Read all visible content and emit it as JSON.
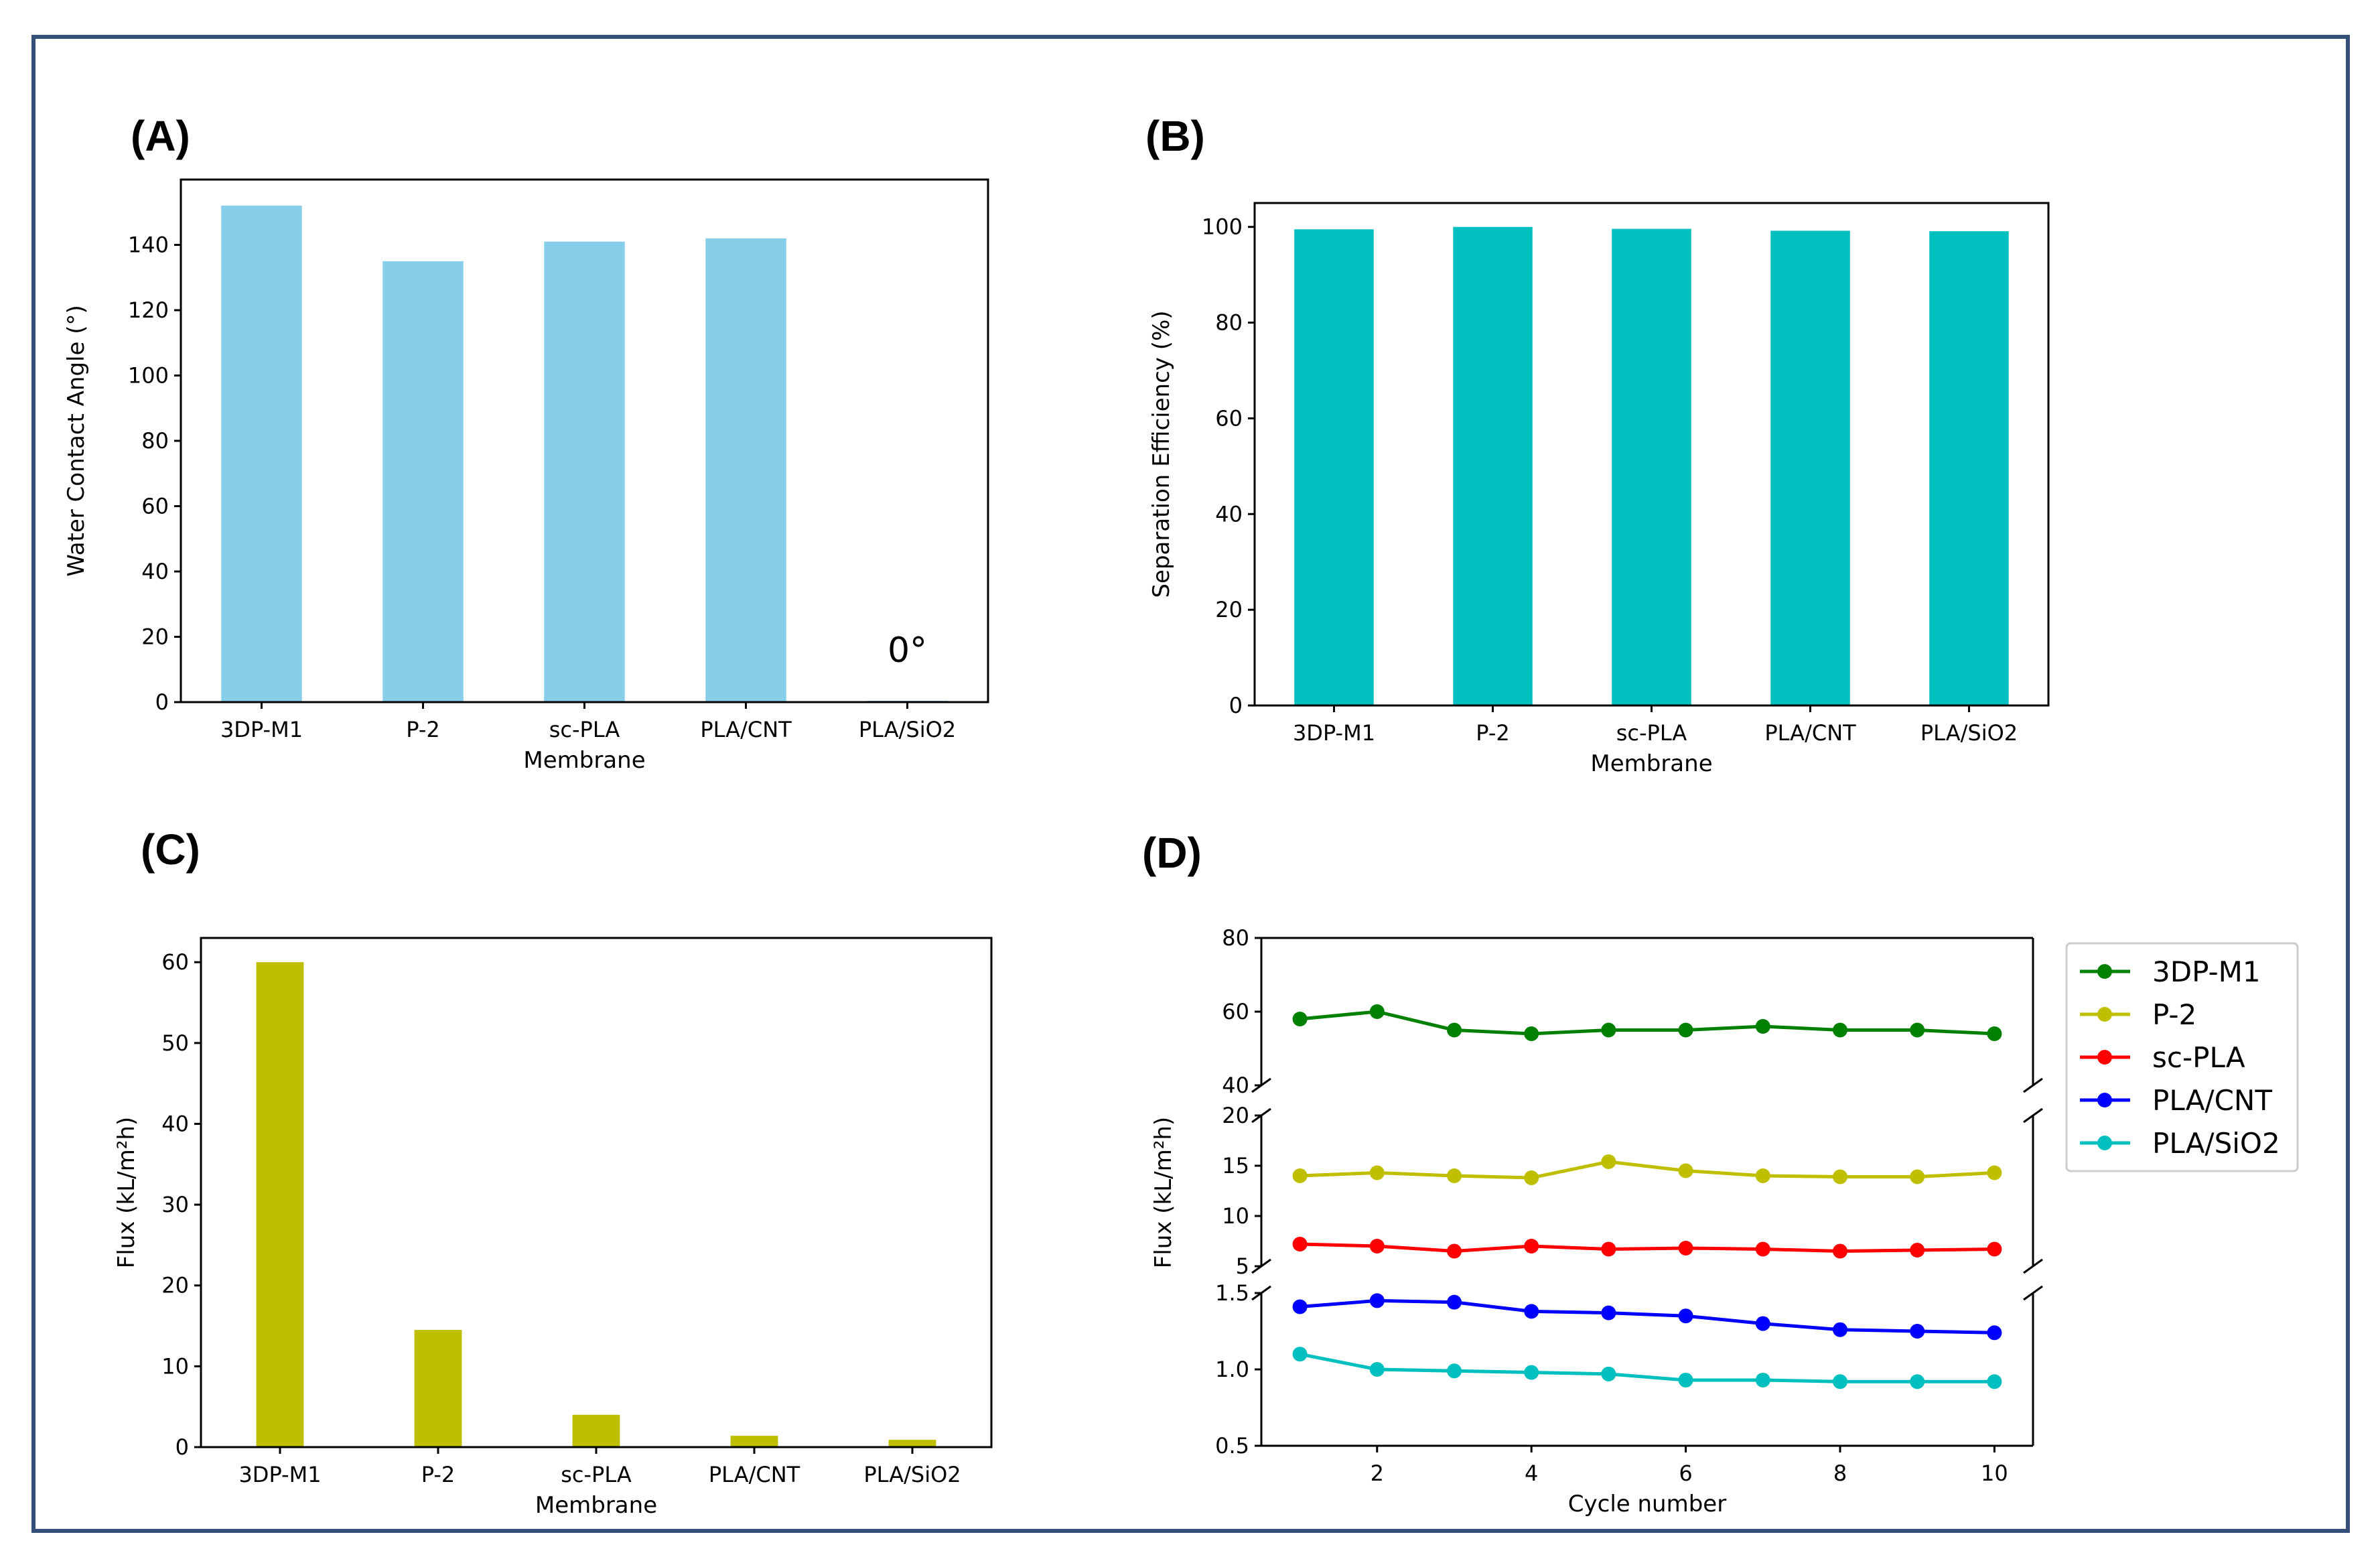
{
  "colors": {
    "frame": "#34507a",
    "bar_A": "#87ceeb",
    "bar_B": "#00bfbf",
    "bar_C": "#bfbf00",
    "series": [
      "#008000",
      "#bfbf00",
      "#ff0000",
      "#0000ff",
      "#00bfbf"
    ]
  },
  "chart_data": [
    {
      "id": "A",
      "type": "bar",
      "panel_label": "(A)",
      "categories": [
        "3DP-M1",
        "P-2",
        "sc-PLA",
        "PLA/CNT",
        "PLA/SiO2"
      ],
      "values": [
        152,
        135,
        141,
        142,
        0
      ],
      "xlabel": "Membrane",
      "ylabel": "Water Contact Angle (°)",
      "ylim": [
        0,
        160
      ],
      "yticks": [
        0,
        20,
        40,
        60,
        80,
        100,
        120,
        140
      ],
      "annotation": "0°"
    },
    {
      "id": "B",
      "type": "bar",
      "panel_label": "(B)",
      "categories": [
        "3DP-M1",
        "P-2",
        "sc-PLA",
        "PLA/CNT",
        "PLA/SiO2"
      ],
      "values": [
        99.5,
        100,
        99.6,
        99.2,
        99.1
      ],
      "xlabel": "Membrane",
      "ylabel": "Separation Efficiency (%)",
      "ylim": [
        0,
        105
      ],
      "yticks": [
        0,
        20,
        40,
        60,
        80,
        100
      ]
    },
    {
      "id": "C",
      "type": "bar",
      "panel_label": "(C)",
      "categories": [
        "3DP-M1",
        "P-2",
        "sc-PLA",
        "PLA/CNT",
        "PLA/SiO2"
      ],
      "values": [
        60,
        14.5,
        4,
        1.4,
        0.9
      ],
      "xlabel": "Membrane",
      "ylabel": "Flux (kL/m²h)",
      "ylim": [
        0,
        63
      ],
      "yticks": [
        0,
        10,
        20,
        30,
        40,
        50,
        60
      ]
    },
    {
      "id": "D",
      "type": "line",
      "panel_label": "(D)",
      "xlabel": "Cycle number",
      "ylabel": "Flux (kL/m²h)",
      "x": [
        1,
        2,
        3,
        4,
        5,
        6,
        7,
        8,
        9,
        10
      ],
      "xlim": [
        0.5,
        10.5
      ],
      "xticks": [
        2,
        4,
        6,
        8,
        10
      ],
      "broken_axis_segments": [
        {
          "ylim": [
            40,
            80
          ],
          "yticks": [
            40,
            60,
            80
          ]
        },
        {
          "ylim": [
            5,
            20
          ],
          "yticks": [
            5,
            10,
            15,
            20
          ]
        },
        {
          "ylim": [
            0.5,
            1.5
          ],
          "yticks": [
            0.5,
            1.0,
            1.5
          ],
          "tick_labels": [
            "0.5",
            "1.0",
            "1.5"
          ]
        }
      ],
      "series": [
        {
          "name": "3DP-M1",
          "segment": 0,
          "values": [
            58,
            60,
            55,
            54,
            55,
            55,
            56,
            55,
            55,
            54
          ]
        },
        {
          "name": "P-2",
          "segment": 1,
          "values": [
            14,
            14.3,
            14,
            13.8,
            15.4,
            14.5,
            14,
            13.9,
            13.9,
            14.3
          ]
        },
        {
          "name": "sc-PLA",
          "segment": 1,
          "values": [
            7.2,
            7,
            6.5,
            7,
            6.7,
            6.8,
            6.7,
            6.5,
            6.6,
            6.7
          ]
        },
        {
          "name": "PLA/CNT",
          "segment": 2,
          "values": [
            1.41,
            1.45,
            1.44,
            1.38,
            1.37,
            1.35,
            1.3,
            1.26,
            1.25,
            1.24
          ]
        },
        {
          "name": "PLA/SiO2",
          "segment": 2,
          "values": [
            1.1,
            1.0,
            0.99,
            0.98,
            0.97,
            0.93,
            0.93,
            0.92,
            0.92,
            0.92
          ]
        }
      ],
      "legend_position": "right"
    }
  ]
}
